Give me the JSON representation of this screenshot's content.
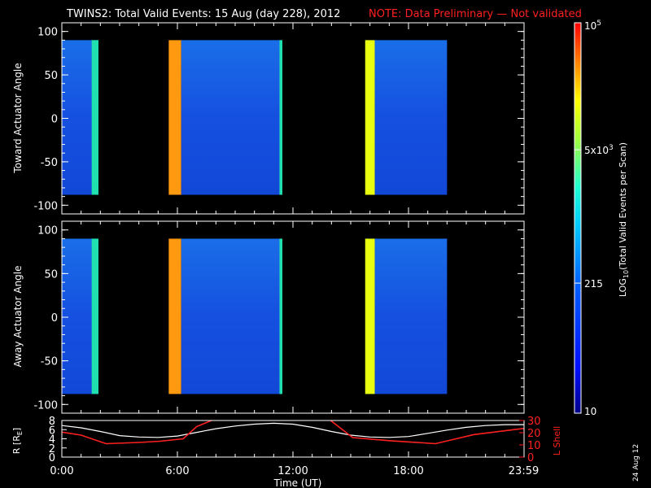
{
  "header": {
    "title": "TWINS2: Total Valid Events: 15 Aug (day 228), 2012",
    "note": "NOTE: Data Preliminary — Not validated"
  },
  "colors": {
    "note": "#ff2020",
    "lshell": "#ff2020",
    "r_line": "#ffffff"
  },
  "chart_data": [
    {
      "type": "heatmap",
      "panel": "toward",
      "ylabel": "Toward Actuator Angle",
      "yticks": [
        "100",
        "50",
        "0",
        "-50",
        "-100"
      ],
      "ylim": [
        -110,
        110
      ],
      "xlim": [
        0,
        24
      ],
      "data_extent": [
        -88,
        90
      ],
      "intervals": [
        {
          "start": 0.0,
          "end": 1.9,
          "level": "low"
        },
        {
          "start": 1.55,
          "end": 1.9,
          "level": "mid"
        },
        {
          "start": 5.55,
          "end": 6.2,
          "level": "high"
        },
        {
          "start": 6.2,
          "end": 11.45,
          "level": "low"
        },
        {
          "start": 11.3,
          "end": 11.45,
          "level": "mid"
        },
        {
          "start": 15.75,
          "end": 16.25,
          "level": "highmid"
        },
        {
          "start": 16.25,
          "end": 20.0,
          "level": "low"
        }
      ]
    },
    {
      "type": "heatmap",
      "panel": "away",
      "ylabel": "Away Actuator Angle",
      "yticks": [
        "100",
        "50",
        "0",
        "-50",
        "-100"
      ],
      "ylim": [
        -110,
        110
      ],
      "xlim": [
        0,
        24
      ],
      "data_extent": [
        -88,
        90
      ],
      "intervals": [
        {
          "start": 0.0,
          "end": 1.9,
          "level": "low"
        },
        {
          "start": 1.55,
          "end": 1.9,
          "level": "mid"
        },
        {
          "start": 5.55,
          "end": 6.2,
          "level": "high"
        },
        {
          "start": 6.2,
          "end": 11.45,
          "level": "low"
        },
        {
          "start": 11.3,
          "end": 11.45,
          "level": "mid"
        },
        {
          "start": 15.75,
          "end": 16.25,
          "level": "highmid"
        },
        {
          "start": 16.25,
          "end": 20.0,
          "level": "low"
        }
      ]
    },
    {
      "type": "line",
      "panel": "orbit",
      "ylabel_left": "R [R",
      "ylabel_left_sub": "E",
      "ylabel_left_close": "]",
      "ylabel_right": "L Shell",
      "yticks_left": [
        "8",
        "6",
        "4",
        "2",
        "0"
      ],
      "yticks_right": [
        "30",
        "20",
        "10",
        "0"
      ],
      "ylim_left": [
        0,
        8
      ],
      "ylim_right": [
        0,
        30
      ],
      "xlabel": "Time (UT)",
      "xticks": [
        "0:00",
        "6:00",
        "12:00",
        "18:00",
        "23:59"
      ],
      "xtick_values": [
        0,
        6,
        12,
        18,
        23.98
      ],
      "series": [
        {
          "axis": "left",
          "x": [
            0,
            1,
            2,
            3,
            4,
            5,
            6,
            7,
            8,
            9,
            10,
            11,
            12,
            13,
            14,
            15,
            16,
            17,
            18,
            19,
            20,
            21,
            22,
            23,
            24
          ],
          "y": [
            6.9,
            6.4,
            5.6,
            4.7,
            4.4,
            4.3,
            4.6,
            5.4,
            6.2,
            6.8,
            7.2,
            7.4,
            7.2,
            6.5,
            5.6,
            4.8,
            4.4,
            4.3,
            4.5,
            5.2,
            5.9,
            6.5,
            6.9,
            7.1,
            7.1
          ]
        },
        {
          "axis": "right",
          "x": [
            0,
            1.0,
            2.3,
            4.0,
            5.1,
            6.3,
            7.0,
            9.0,
            13.3,
            15.1,
            17.0,
            19.4,
            21.4,
            23.98
          ],
          "y": [
            20.5,
            18.0,
            11.0,
            12.0,
            13.0,
            15.0,
            25.0,
            38.0,
            38.0,
            16.0,
            13.5,
            11.0,
            18.5,
            23.5
          ]
        }
      ]
    }
  ],
  "colorbar": {
    "label": "LOG",
    "label_sub": "10",
    "label_rest": "(Total Valid Events per Scan)",
    "ticks": [
      {
        "base": "10",
        "exp": "5",
        "value": 100000
      },
      {
        "base": "5x10",
        "exp": "3",
        "value": 5000
      },
      {
        "base": "215",
        "exp": "",
        "value": 215
      },
      {
        "base": "10",
        "exp": "",
        "value": 10
      }
    ],
    "range": [
      10,
      100000
    ]
  },
  "footer": {
    "date": "24 Aug 12"
  }
}
